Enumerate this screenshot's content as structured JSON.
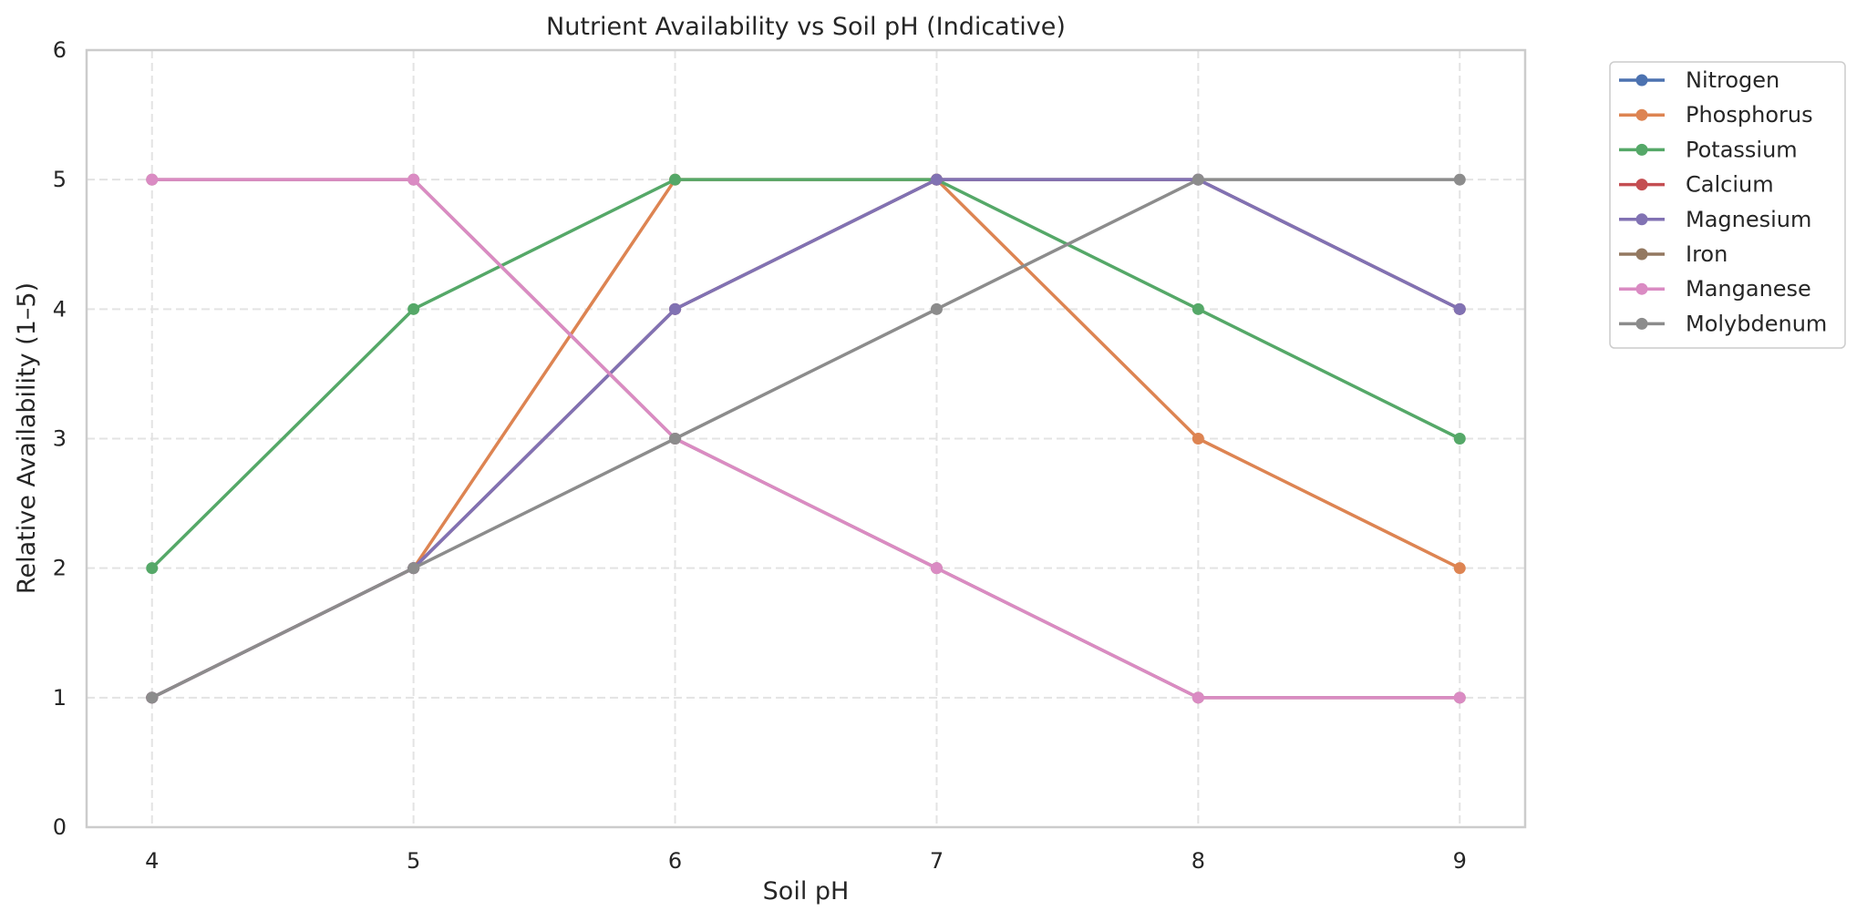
{
  "chart_data": {
    "type": "line",
    "title": "Nutrient Availability vs Soil pH (Indicative)",
    "xlabel": "Soil pH",
    "ylabel": "Relative Availability (1–5)",
    "x": [
      4,
      5,
      6,
      7,
      8,
      9
    ],
    "xlim": [
      3.75,
      9.25
    ],
    "ylim": [
      0,
      6
    ],
    "xticks": [
      4,
      5,
      6,
      7,
      8,
      9
    ],
    "yticks": [
      0,
      1,
      2,
      3,
      4,
      5,
      6
    ],
    "grid": true,
    "legend_position": "outside-top-right",
    "series": [
      {
        "name": "Nitrogen",
        "color": "#4c72b0",
        "values": [
          1,
          2,
          4,
          5,
          5,
          4
        ]
      },
      {
        "name": "Phosphorus",
        "color": "#dd8452",
        "values": [
          1,
          2,
          5,
          5,
          3,
          2
        ]
      },
      {
        "name": "Potassium",
        "color": "#55a868",
        "values": [
          2,
          4,
          5,
          5,
          4,
          3
        ]
      },
      {
        "name": "Calcium",
        "color": "#c44e52",
        "values": [
          1,
          2,
          4,
          5,
          5,
          4
        ]
      },
      {
        "name": "Magnesium",
        "color": "#8172b3",
        "values": [
          1,
          2,
          4,
          5,
          5,
          4
        ]
      },
      {
        "name": "Iron",
        "color": "#937860",
        "values": [
          5,
          5,
          3,
          2,
          1,
          1
        ]
      },
      {
        "name": "Manganese",
        "color": "#da8bc3",
        "values": [
          5,
          5,
          3,
          2,
          1,
          1
        ]
      },
      {
        "name": "Molybdenum",
        "color": "#8c8c8c",
        "values": [
          1,
          2,
          3,
          4,
          5,
          5
        ]
      }
    ]
  }
}
